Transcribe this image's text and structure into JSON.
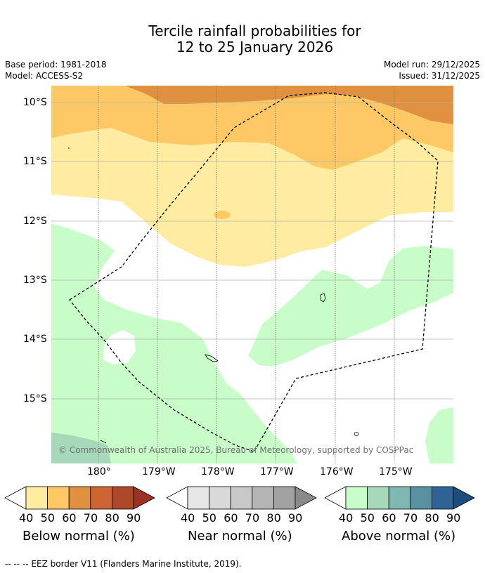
{
  "header": {
    "title_line1": "Tercile rainfall probabilities for",
    "title_line2": "12 to 25 January 2026",
    "base_period": "Base period: 1981-2018",
    "model": "Model: ACCESS-S2",
    "model_run": "Model run: 29/12/2025",
    "issued": "Issued: 31/12/2025"
  },
  "map": {
    "lat_labels": [
      "10°S",
      "11°S",
      "12°S",
      "13°S",
      "14°S",
      "15°S"
    ],
    "lon_labels": [
      "180°",
      "179°W",
      "178°W",
      "177°W",
      "176°W",
      "175°W"
    ],
    "credit": "© Commonwealth of Australia 2025, Bureau of Meteorology, supported by COSPPac",
    "boundary": "EEZ border"
  },
  "colorbars": [
    {
      "title": "Below normal (%)",
      "ticks": [
        "40",
        "50",
        "60",
        "70",
        "80",
        "90"
      ],
      "colors": [
        "#ffffff",
        "#ffeca0",
        "#fec965",
        "#e0913f",
        "#cd6533",
        "#ad482b",
        "#9c3224"
      ]
    },
    {
      "title": "Near normal (%)",
      "ticks": [
        "40",
        "50",
        "60",
        "70",
        "80",
        "90"
      ],
      "colors": [
        "#ffffff",
        "#e6e6e6",
        "#d9d9d9",
        "#c8c8c8",
        "#b4b4b4",
        "#a2a2a2",
        "#8a8a8a"
      ]
    },
    {
      "title": "Above normal (%)",
      "ticks": [
        "40",
        "50",
        "60",
        "70",
        "80",
        "90"
      ],
      "colors": [
        "#ffffff",
        "#c8fcc8",
        "#a6d9b9",
        "#7fb7b2",
        "#5892a2",
        "#2f6396",
        "#1d4d7d"
      ]
    }
  ],
  "footnote": "--  --  -- EEZ border V11 (Flanders Marine Institute, 2019)."
}
